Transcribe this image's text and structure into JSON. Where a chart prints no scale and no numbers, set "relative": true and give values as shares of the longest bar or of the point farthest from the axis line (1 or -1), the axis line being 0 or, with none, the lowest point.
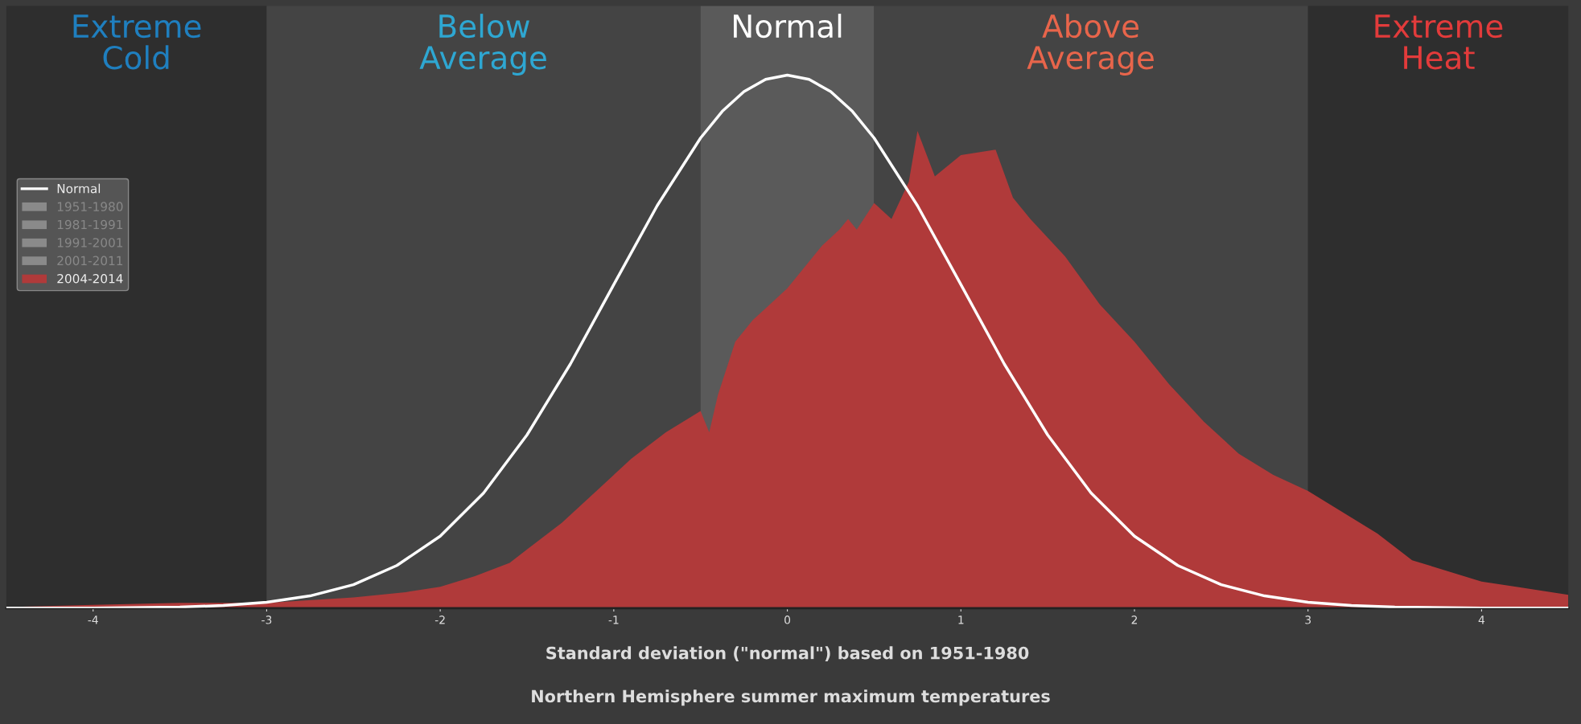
{
  "chart_data": {
    "type": "area",
    "relative": true,
    "xlabel": "Standard deviation (\"normal\") based on 1951-1980",
    "annotations": [
      "Northern Hemisphere summer maximum temperatures"
    ],
    "xlim": [
      -4.5,
      4.5
    ],
    "xticks": [
      -4,
      -3,
      -2,
      -1,
      0,
      1,
      2,
      3,
      4
    ],
    "legend": "left",
    "bands": [
      {
        "axis": "x",
        "from": -4.5,
        "to": -3,
        "label": "Extreme\nCold",
        "color": "#2e2e2e"
      },
      {
        "axis": "x",
        "from": -3,
        "to": -0.5,
        "label": "Below\nAverage",
        "color": "#444444"
      },
      {
        "axis": "x",
        "from": -0.5,
        "to": 0.5,
        "label": "Normal",
        "color": "#5a5a5a"
      },
      {
        "axis": "x",
        "from": 0.5,
        "to": 3,
        "label": "Above\nAverage",
        "color": "#444444"
      },
      {
        "axis": "x",
        "from": 3,
        "to": 4.5,
        "label": "Extreme\nHeat",
        "color": "#2e2e2e"
      }
    ],
    "series": [
      {
        "name": "Normal",
        "type": "line",
        "color": "#ffffff",
        "x": [
          -4.5,
          -4,
          -3.5,
          -3.25,
          -3,
          -2.75,
          -2.5,
          -2.25,
          -2,
          -1.75,
          -1.5,
          -1.25,
          -1,
          -0.75,
          -0.5,
          -0.375,
          -0.25,
          -0.125,
          0,
          0.125,
          0.25,
          0.375,
          0.5,
          0.75,
          1,
          1.25,
          1.5,
          1.75,
          2,
          2.25,
          2.5,
          2.75,
          3,
          3.25,
          3.5,
          4,
          4.5
        ],
        "values": [
          0,
          0,
          0.002,
          0.005,
          0.011,
          0.023,
          0.044,
          0.08,
          0.135,
          0.216,
          0.325,
          0.458,
          0.607,
          0.755,
          0.882,
          0.932,
          0.969,
          0.992,
          1,
          0.992,
          0.969,
          0.932,
          0.882,
          0.755,
          0.607,
          0.458,
          0.325,
          0.216,
          0.135,
          0.08,
          0.044,
          0.023,
          0.011,
          0.005,
          0.002,
          0,
          0
        ]
      },
      {
        "name": "1951-1980",
        "type": "area",
        "color": "#8a8a8a"
      },
      {
        "name": "1981-1991",
        "type": "area",
        "color": "#8a8a8a"
      },
      {
        "name": "1991-2001",
        "type": "area",
        "color": "#8a8a8a"
      },
      {
        "name": "2001-2011",
        "type": "area",
        "color": "#8a8a8a"
      },
      {
        "name": "2004-2014",
        "color": "#b03a3a",
        "x": [
          -4.5,
          -4,
          -3.5,
          -3,
          -2.5,
          -2.2,
          -2.0,
          -1.8,
          -1.6,
          -1.5,
          -1.3,
          -1.1,
          -0.9,
          -0.7,
          -0.5,
          -0.45,
          -0.4,
          -0.3,
          -0.2,
          -0.1,
          0.0,
          0.1,
          0.2,
          0.3,
          0.35,
          0.4,
          0.5,
          0.6,
          0.7,
          0.75,
          0.85,
          1.0,
          1.2,
          1.3,
          1.4,
          1.6,
          1.8,
          2.0,
          2.2,
          2.4,
          2.6,
          2.8,
          3.0,
          3.2,
          3.4,
          3.6,
          3.8,
          4.0,
          4.2,
          4.5
        ],
        "values": [
          0.002,
          0.006,
          0.01,
          0.01,
          0.02,
          0.03,
          0.04,
          0.06,
          0.085,
          0.11,
          0.16,
          0.22,
          0.28,
          0.33,
          0.37,
          0.33,
          0.4,
          0.5,
          0.54,
          0.57,
          0.6,
          0.64,
          0.68,
          0.71,
          0.73,
          0.71,
          0.76,
          0.73,
          0.8,
          0.895,
          0.81,
          0.85,
          0.86,
          0.77,
          0.73,
          0.66,
          0.57,
          0.5,
          0.42,
          0.35,
          0.29,
          0.25,
          0.22,
          0.18,
          0.14,
          0.09,
          0.07,
          0.05,
          0.04,
          0.025
        ]
      }
    ]
  }
}
